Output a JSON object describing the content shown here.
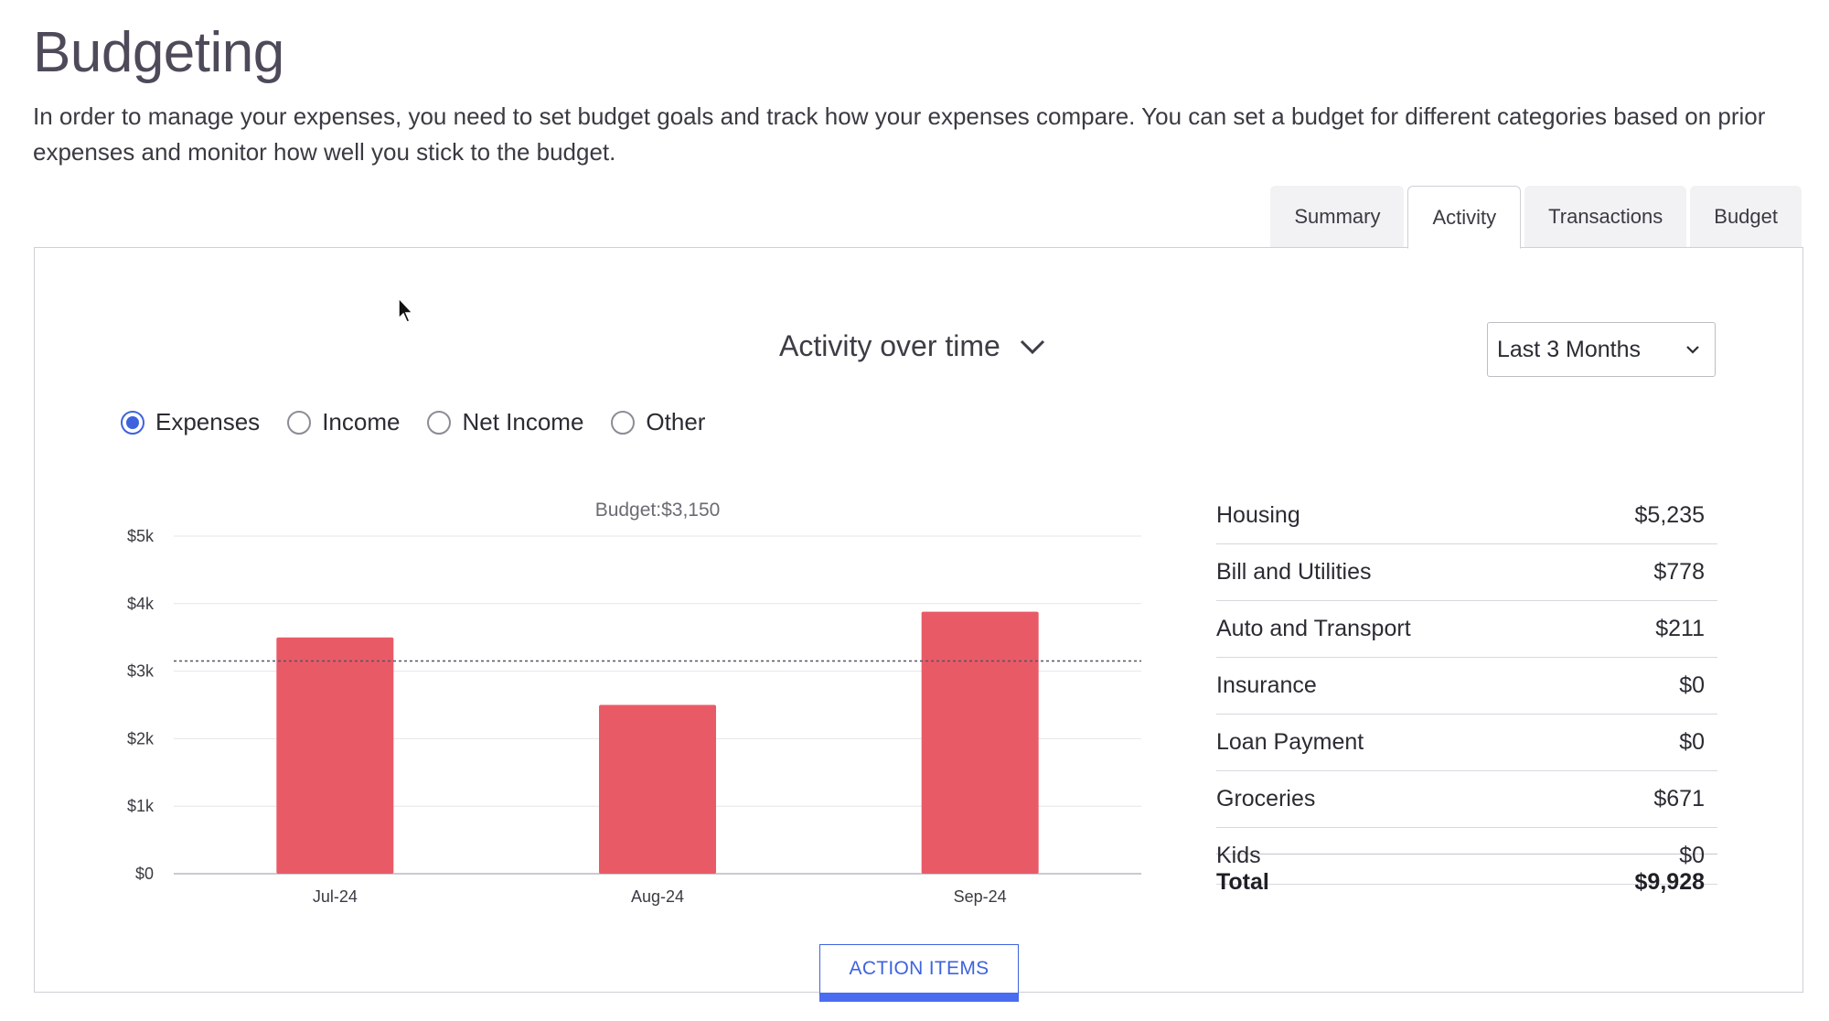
{
  "page": {
    "title": "Budgeting",
    "intro": "In order to manage your expenses, you need to set budget goals and track how your expenses compare. You can set a budget for different categories based on prior expenses and monitor how well you stick to the budget."
  },
  "tabs": [
    {
      "label": "Summary",
      "active": false
    },
    {
      "label": "Activity",
      "active": true
    },
    {
      "label": "Transactions",
      "active": false
    },
    {
      "label": "Budget",
      "active": false
    }
  ],
  "activity": {
    "view_label": "Activity over time",
    "range_label": "Last 3 Months",
    "radios": [
      {
        "label": "Expenses",
        "checked": true
      },
      {
        "label": "Income",
        "checked": false
      },
      {
        "label": "Net Income",
        "checked": false
      },
      {
        "label": "Other",
        "checked": false
      }
    ],
    "categories": [
      {
        "name": "Housing",
        "amount": "$5,235"
      },
      {
        "name": "Bill and Utilities",
        "amount": "$778"
      },
      {
        "name": "Auto and Transport",
        "amount": "$211"
      },
      {
        "name": "Insurance",
        "amount": "$0"
      },
      {
        "name": "Loan Payment",
        "amount": "$0"
      },
      {
        "name": "Groceries",
        "amount": "$671"
      },
      {
        "name": "Kids",
        "amount": "$0"
      }
    ],
    "total": {
      "label": "Total",
      "amount": "$9,928"
    },
    "action_button": "ACTION ITEMS"
  },
  "chart_data": {
    "type": "bar",
    "categories": [
      "Jul-24",
      "Aug-24",
      "Sep-24"
    ],
    "values": [
      3500,
      2500,
      3880
    ],
    "ylim": [
      0,
      5000
    ],
    "yticks": [
      0,
      1000,
      2000,
      3000,
      4000,
      5000
    ],
    "ytick_labels": [
      "$0",
      "$1k",
      "$2k",
      "$3k",
      "$4k",
      "$5k"
    ],
    "budget_value": 3150,
    "budget_label": "Budget:$3,150",
    "bar_color": "#e95a67",
    "grid": true
  },
  "colors": {
    "accent": "#3e63dd",
    "bar": "#e95a67"
  }
}
